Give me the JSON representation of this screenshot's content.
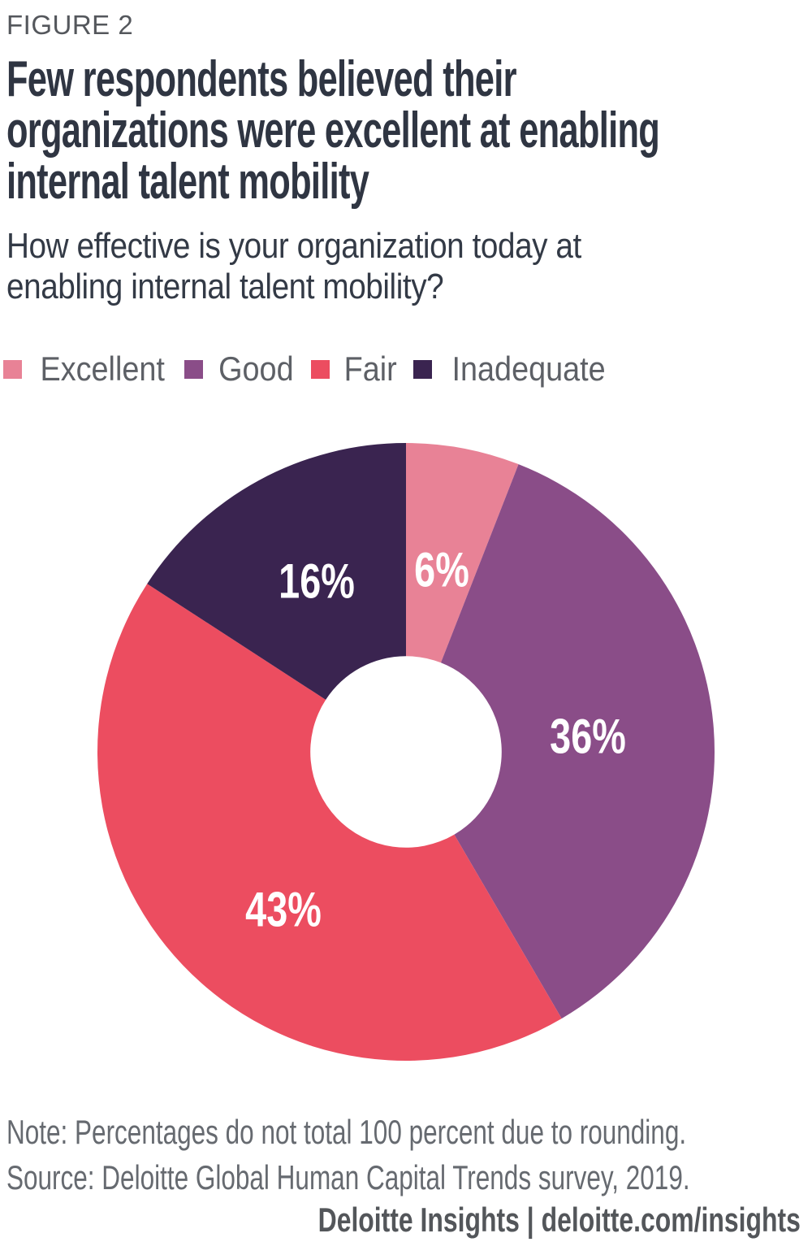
{
  "figure_label": "FIGURE 2",
  "title_lines": [
    "Few respondents believed their",
    "organizations were excellent at enabling",
    "internal talent mobility"
  ],
  "subtitle_lines": [
    "How effective is your organization today at",
    "enabling internal talent mobility?"
  ],
  "chart_data": {
    "type": "pie",
    "subtype": "donut",
    "title": "Few respondents believed their organizations were excellent at enabling internal talent mobility",
    "question": "How effective is your organization today at enabling internal talent mobility?",
    "categories": [
      "Excellent",
      "Good",
      "Fair",
      "Inadequate"
    ],
    "values": [
      6,
      36,
      43,
      16
    ],
    "labels": [
      "6%",
      "36%",
      "43%",
      "16%"
    ],
    "colors": [
      "#e88296",
      "#8a4d88",
      "#ec4d60",
      "#3a2450"
    ],
    "start_angle_deg": 0,
    "direction": "clockwise",
    "inner_radius_ratio": 0.31,
    "label_color": "#ffffff",
    "legend_position": "top",
    "note": "Percentages do not total 100 percent due to rounding."
  },
  "note": "Note: Percentages do not total 100 percent due to rounding.",
  "source": "Source: Deloitte Global Human Capital Trends survey, 2019.",
  "footer": {
    "text": "Deloitte Insights | deloitte.com/insights"
  },
  "theme": {
    "background": "#ffffff",
    "title_color": "#2f3542",
    "subtitle_color": "#333a46",
    "figure_label_color": "#54575c",
    "muted_text_color": "#666a70",
    "legend_text_color": "#5d6066",
    "footer_color": "#53565a",
    "chart_label_color": "#ffffff"
  }
}
